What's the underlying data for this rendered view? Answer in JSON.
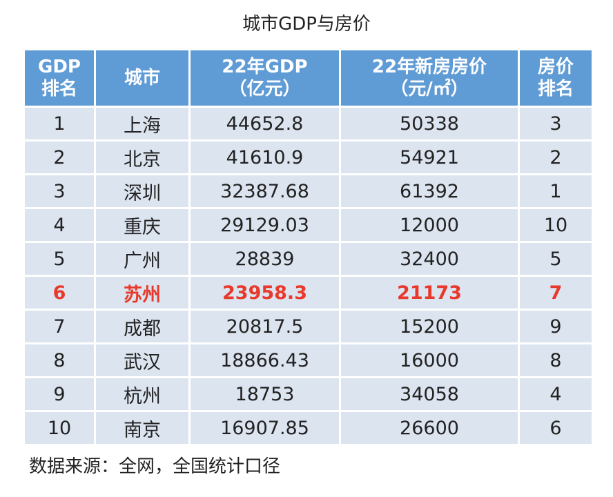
{
  "title": "城市GDP与房价",
  "table": {
    "header": [
      [
        "GDP",
        "排名"
      ],
      [
        "城市"
      ],
      [
        "22年GDP",
        "（亿元）"
      ],
      [
        "22年新房房价",
        "（元/㎡）"
      ],
      [
        "房价",
        "排名"
      ]
    ],
    "rows": [
      [
        "1",
        "上海",
        "44652.8",
        "50338",
        "3"
      ],
      [
        "2",
        "北京",
        "41610.9",
        "54921",
        "2"
      ],
      [
        "3",
        "深圳",
        "32387.68",
        "61392",
        "1"
      ],
      [
        "4",
        "重庆",
        "29129.03",
        "12000",
        "10"
      ],
      [
        "5",
        "广州",
        "28839",
        "32400",
        "5"
      ],
      [
        "6",
        "苏州",
        "23958.3",
        "21173",
        "7"
      ],
      [
        "7",
        "成都",
        "20817.5",
        "15200",
        "9"
      ],
      [
        "8",
        "武汉",
        "18866.43",
        "16000",
        "8"
      ],
      [
        "9",
        "杭州",
        "18753",
        "34058",
        "4"
      ],
      [
        "10",
        "南京",
        "16907.85",
        "26600",
        "6"
      ]
    ]
  },
  "source": "数据来源：全网，全国统计口径"
}
